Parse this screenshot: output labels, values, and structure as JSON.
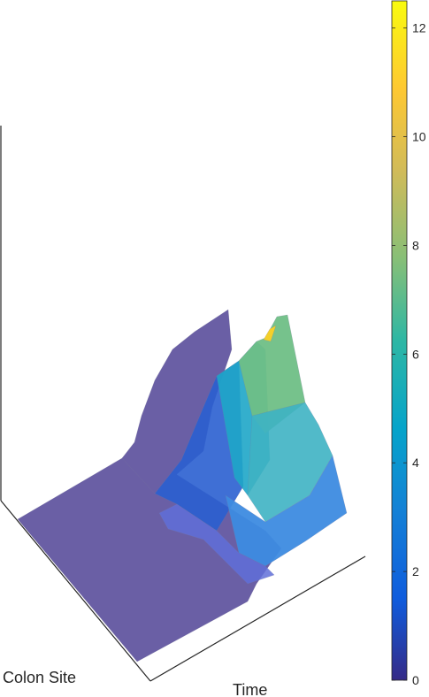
{
  "chart_data": {
    "type": "surface",
    "title": "",
    "xlabel": "Time",
    "ylabel": "Colon Site",
    "zlabel": "",
    "colorbar": {
      "ticks": [
        0,
        2,
        4,
        6,
        8,
        10,
        12
      ],
      "tick_labels": [
        "0",
        "2",
        "4",
        "6",
        "8",
        "10",
        "12"
      ],
      "range": [
        0,
        12.5
      ],
      "colormap": "parula"
    },
    "colors": {
      "flat_surface": "#6a5fa5",
      "peak": "#f4d02a",
      "axis": "#262626"
    }
  }
}
